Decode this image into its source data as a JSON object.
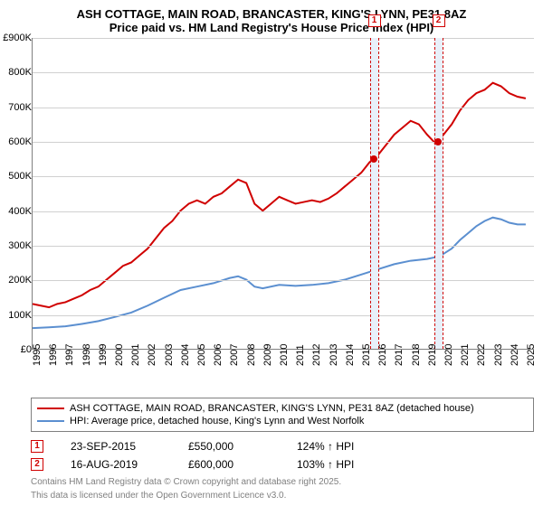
{
  "title": "ASH COTTAGE, MAIN ROAD, BRANCASTER, KING'S LYNN, PE31 8AZ",
  "subtitle": "Price paid vs. HM Land Registry's House Price Index (HPI)",
  "chart": {
    "type": "line",
    "x_range": [
      1995,
      2025.5
    ],
    "y_range": [
      0,
      900
    ],
    "y_ticks": [
      0,
      100,
      200,
      300,
      400,
      500,
      600,
      700,
      800,
      900
    ],
    "y_tick_labels": [
      "£0",
      "100K",
      "200K",
      "300K",
      "400K",
      "500K",
      "600K",
      "700K",
      "800K",
      "£900K"
    ],
    "x_ticks": [
      1995,
      1996,
      1997,
      1998,
      1999,
      2000,
      2001,
      2002,
      2003,
      2004,
      2005,
      2006,
      2007,
      2008,
      2009,
      2010,
      2011,
      2012,
      2013,
      2014,
      2015,
      2016,
      2017,
      2018,
      2019,
      2020,
      2021,
      2022,
      2023,
      2024,
      2025
    ],
    "grid_color": "#d0d0d0",
    "axis_color": "#808080",
    "background_color": "#ffffff",
    "highlight_band_color": "#e8f0fa",
    "highlight_border_color": "#d00000",
    "line_width": 2,
    "label_fontsize": 11,
    "series": [
      {
        "name": "property",
        "color": "#d00000",
        "points": [
          [
            1995,
            130
          ],
          [
            1995.5,
            125
          ],
          [
            1996,
            120
          ],
          [
            1996.5,
            130
          ],
          [
            1997,
            135
          ],
          [
            1997.5,
            145
          ],
          [
            1998,
            155
          ],
          [
            1998.5,
            170
          ],
          [
            1999,
            180
          ],
          [
            1999.5,
            200
          ],
          [
            2000,
            220
          ],
          [
            2000.5,
            240
          ],
          [
            2001,
            250
          ],
          [
            2001.5,
            270
          ],
          [
            2002,
            290
          ],
          [
            2002.5,
            320
          ],
          [
            2003,
            350
          ],
          [
            2003.5,
            370
          ],
          [
            2004,
            400
          ],
          [
            2004.5,
            420
          ],
          [
            2005,
            430
          ],
          [
            2005.5,
            420
          ],
          [
            2006,
            440
          ],
          [
            2006.5,
            450
          ],
          [
            2007,
            470
          ],
          [
            2007.5,
            490
          ],
          [
            2008,
            480
          ],
          [
            2008.5,
            420
          ],
          [
            2009,
            400
          ],
          [
            2009.5,
            420
          ],
          [
            2010,
            440
          ],
          [
            2010.5,
            430
          ],
          [
            2011,
            420
          ],
          [
            2011.5,
            425
          ],
          [
            2012,
            430
          ],
          [
            2012.5,
            425
          ],
          [
            2013,
            435
          ],
          [
            2013.5,
            450
          ],
          [
            2014,
            470
          ],
          [
            2014.5,
            490
          ],
          [
            2015,
            510
          ],
          [
            2015.5,
            540
          ],
          [
            2015.73,
            550
          ],
          [
            2016,
            560
          ],
          [
            2016.5,
            590
          ],
          [
            2017,
            620
          ],
          [
            2017.5,
            640
          ],
          [
            2018,
            660
          ],
          [
            2018.5,
            650
          ],
          [
            2019,
            620
          ],
          [
            2019.5,
            595
          ],
          [
            2019.63,
            600
          ],
          [
            2020,
            620
          ],
          [
            2020.5,
            650
          ],
          [
            2021,
            690
          ],
          [
            2021.5,
            720
          ],
          [
            2022,
            740
          ],
          [
            2022.5,
            750
          ],
          [
            2023,
            770
          ],
          [
            2023.5,
            760
          ],
          [
            2024,
            740
          ],
          [
            2024.5,
            730
          ],
          [
            2025,
            725
          ]
        ]
      },
      {
        "name": "hpi",
        "color": "#5b8fd0",
        "points": [
          [
            1995,
            60
          ],
          [
            1996,
            62
          ],
          [
            1997,
            65
          ],
          [
            1998,
            72
          ],
          [
            1999,
            80
          ],
          [
            2000,
            92
          ],
          [
            2001,
            105
          ],
          [
            2002,
            125
          ],
          [
            2003,
            148
          ],
          [
            2004,
            170
          ],
          [
            2005,
            180
          ],
          [
            2006,
            190
          ],
          [
            2007,
            205
          ],
          [
            2007.5,
            210
          ],
          [
            2008,
            200
          ],
          [
            2008.5,
            180
          ],
          [
            2009,
            175
          ],
          [
            2010,
            185
          ],
          [
            2011,
            182
          ],
          [
            2012,
            185
          ],
          [
            2013,
            190
          ],
          [
            2014,
            200
          ],
          [
            2015,
            215
          ],
          [
            2016,
            230
          ],
          [
            2017,
            245
          ],
          [
            2018,
            255
          ],
          [
            2019,
            260
          ],
          [
            2019.5,
            265
          ],
          [
            2020,
            275
          ],
          [
            2020.5,
            290
          ],
          [
            2021,
            315
          ],
          [
            2021.5,
            335
          ],
          [
            2022,
            355
          ],
          [
            2022.5,
            370
          ],
          [
            2023,
            380
          ],
          [
            2023.5,
            375
          ],
          [
            2024,
            365
          ],
          [
            2024.5,
            360
          ],
          [
            2025,
            360
          ]
        ]
      }
    ],
    "highlights": [
      {
        "start": 2015.5,
        "end": 2016.0,
        "marker": "1",
        "point": [
          2015.73,
          550
        ]
      },
      {
        "start": 2019.4,
        "end": 2019.9,
        "marker": "2",
        "point": [
          2019.63,
          600
        ]
      }
    ]
  },
  "legend": {
    "items": [
      {
        "color": "#d00000",
        "label": "ASH COTTAGE, MAIN ROAD, BRANCASTER, KING'S LYNN, PE31 8AZ (detached house)"
      },
      {
        "color": "#5b8fd0",
        "label": "HPI: Average price, detached house, King's Lynn and West Norfolk"
      }
    ]
  },
  "sales": [
    {
      "marker": "1",
      "date": "23-SEP-2015",
      "price": "£550,000",
      "delta": "124% ↑ HPI"
    },
    {
      "marker": "2",
      "date": "16-AUG-2019",
      "price": "£600,000",
      "delta": "103% ↑ HPI"
    }
  ],
  "footer": {
    "line1": "Contains HM Land Registry data © Crown copyright and database right 2025.",
    "line2": "This data is licensed under the Open Government Licence v3.0."
  }
}
